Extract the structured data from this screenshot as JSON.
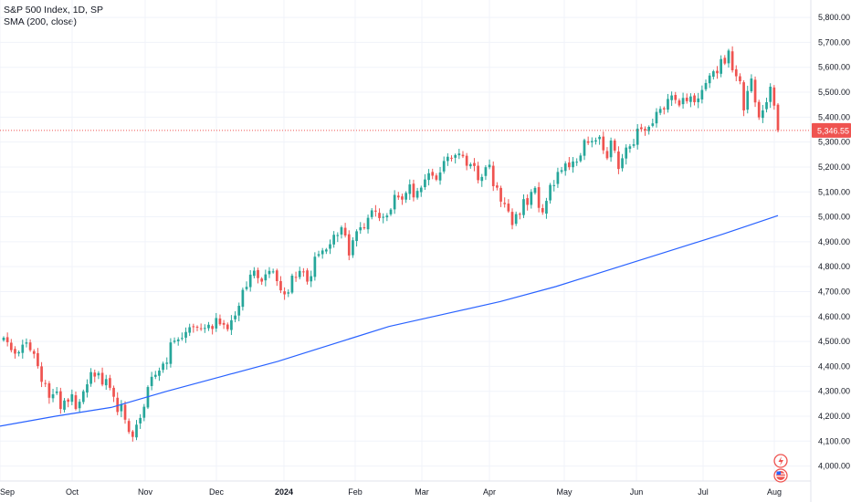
{
  "legend": {
    "title": "S&P 500 Index, 1D, SP",
    "indicator": "SMA (200, close)"
  },
  "colors": {
    "up": "#26a69a",
    "down": "#ef5350",
    "sma": "#2962ff",
    "grid": "#f0f3fa",
    "axis": "#e0e3eb",
    "price_line": "#ef5350"
  },
  "chart_data": {
    "type": "candlestick",
    "ylim": [
      3940,
      5870
    ],
    "y_ticks": [
      "4,000.00",
      "4,100.00",
      "4,200.00",
      "4,300.00",
      "4,400.00",
      "4,500.00",
      "4,600.00",
      "4,700.00",
      "4,800.00",
      "4,900.00",
      "5,000.00",
      "5,100.00",
      "5,200.00",
      "5,300.00",
      "5,400.00",
      "5,500.00",
      "5,600.00",
      "5,700.00",
      "5,800.00"
    ],
    "x_ticks": [
      {
        "label": "Sep",
        "bold": false
      },
      {
        "label": "Oct",
        "bold": false
      },
      {
        "label": "Nov",
        "bold": false
      },
      {
        "label": "Dec",
        "bold": false
      },
      {
        "label": "2024",
        "bold": true
      },
      {
        "label": "Feb",
        "bold": false
      },
      {
        "label": "Mar",
        "bold": false
      },
      {
        "label": "Apr",
        "bold": false
      },
      {
        "label": "May",
        "bold": false
      },
      {
        "label": "Jun",
        "bold": false
      },
      {
        "label": "Jul",
        "bold": false
      },
      {
        "label": "Aug",
        "bold": false
      }
    ],
    "last_price": 5346.55,
    "last_price_label": "5,346.55",
    "closes": [
      4515,
      4497,
      4465,
      4451,
      4457,
      4487,
      4496,
      4465,
      4450,
      4401,
      4338,
      4330,
      4274,
      4288,
      4299,
      4229,
      4263,
      4258,
      4288,
      4229,
      4258,
      4300,
      4328,
      4377,
      4359,
      4373,
      4327,
      4349,
      4314,
      4278,
      4217,
      4247,
      4186,
      4137,
      4117,
      4166,
      4193,
      4238,
      4317,
      4358,
      4366,
      4383,
      4411,
      4415,
      4496,
      4503,
      4508,
      4514,
      4538,
      4557,
      4559,
      4557,
      4550,
      4554,
      4567,
      4550,
      4594,
      4569,
      4567,
      4549,
      4585,
      4604,
      4643,
      4707,
      4719,
      4768,
      4784,
      4754,
      4740,
      4769,
      4783,
      4781,
      4742,
      4705,
      4689,
      4697,
      4764,
      4756,
      4783,
      4780,
      4740,
      4762,
      4840,
      4850,
      4865,
      4869,
      4890,
      4928,
      4927,
      4958,
      4925,
      4845,
      4906,
      4942,
      4958,
      4954,
      4996,
      5026,
      5021,
      4995,
      5000,
      5005,
      5029,
      5088,
      5078,
      5069,
      5096,
      5130,
      5078,
      5104,
      5117,
      5150,
      5175,
      5165,
      5149,
      5178,
      5224,
      5241,
      5234,
      5248,
      5254,
      5243,
      5205,
      5211,
      5204,
      5147,
      5160,
      5199,
      5209,
      5123,
      5117,
      5061,
      5051,
      5022,
      4967,
      5011,
      5010,
      5071,
      5048,
      5100,
      5116,
      5036,
      5018,
      5064,
      5128,
      5127,
      5180,
      5187,
      5214,
      5199,
      5222,
      5221,
      5246,
      5308,
      5297,
      5304,
      5307,
      5321,
      5267,
      5235,
      5306,
      5266,
      5192,
      5235,
      5278,
      5283,
      5291,
      5354,
      5352,
      5347,
      5361,
      5375,
      5421,
      5433,
      5431,
      5473,
      5487,
      5469,
      5447,
      5477,
      5464,
      5483,
      5460,
      5475,
      5509,
      5537,
      5567,
      5584,
      5576,
      5633,
      5615,
      5667,
      5588,
      5564,
      5544,
      5427,
      5505,
      5555,
      5459,
      5399,
      5427,
      5460,
      5522,
      5446,
      5347
    ],
    "sma": [
      4160,
      4200,
      4235,
      4300,
      4360,
      4420,
      4490,
      4560,
      4610,
      4660,
      4720,
      4790,
      4860,
      4930,
      5005
    ]
  }
}
